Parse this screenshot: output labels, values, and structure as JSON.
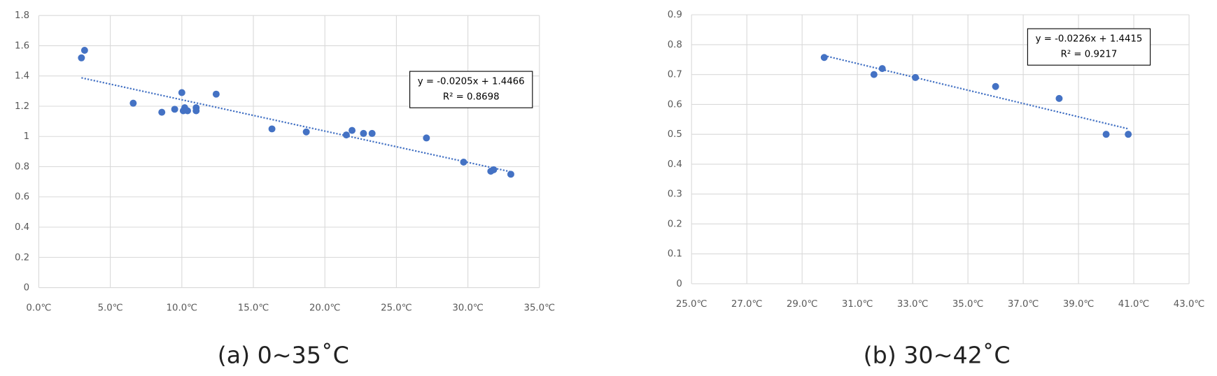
{
  "chart_data": [
    {
      "type": "scatter",
      "caption": "(a) 0~35˚C",
      "color": "#4472c4",
      "grid": true,
      "x": [
        2.98,
        3.2,
        6.6,
        8.6,
        9.5,
        10.0,
        10.2,
        10.1,
        10.4,
        11.0,
        11.0,
        12.4,
        16.3,
        18.7,
        21.5,
        21.9,
        22.7,
        23.3,
        27.1,
        29.7,
        31.6,
        31.8,
        33.0
      ],
      "values": [
        1.52,
        1.57,
        1.22,
        1.16,
        1.18,
        1.29,
        1.19,
        1.17,
        1.17,
        1.19,
        1.17,
        1.28,
        1.05,
        1.03,
        1.01,
        1.04,
        1.02,
        1.02,
        0.99,
        0.83,
        0.77,
        0.78,
        0.75
      ],
      "xlim": [
        0,
        35
      ],
      "xticks": [
        {
          "value": 0,
          "label": "0.0℃"
        },
        {
          "value": 5,
          "label": "5.0℃"
        },
        {
          "value": 10,
          "label": "10.0℃"
        },
        {
          "value": 15,
          "label": "15.0℃"
        },
        {
          "value": 20,
          "label": "20.0℃"
        },
        {
          "value": 25,
          "label": "25.0℃"
        },
        {
          "value": 30,
          "label": "30.0℃"
        },
        {
          "value": 35,
          "label": "35.0℃"
        }
      ],
      "ylim": [
        0,
        1.8
      ],
      "yticks": [
        0,
        0.2,
        0.4,
        0.6,
        0.8,
        1,
        1.2,
        1.4,
        1.6,
        1.8
      ],
      "trendline": {
        "equation": "y = -0.0205x + 1.4466",
        "r2": "R² = 0.8698"
      }
    },
    {
      "type": "scatter",
      "caption": "(b) 30~42˚C",
      "color": "#4472c4",
      "grid": true,
      "x": [
        29.8,
        31.6,
        31.9,
        33.1,
        36.0,
        38.3,
        40.0,
        40.8
      ],
      "values": [
        0.757,
        0.7,
        0.72,
        0.69,
        0.66,
        0.62,
        0.5,
        0.5
      ],
      "xlim": [
        25,
        43
      ],
      "xticks": [
        {
          "value": 25,
          "label": "25.0℃"
        },
        {
          "value": 27,
          "label": "27.0℃"
        },
        {
          "value": 29,
          "label": "29.0℃"
        },
        {
          "value": 31,
          "label": "31.0℃"
        },
        {
          "value": 33,
          "label": "33.0℃"
        },
        {
          "value": 35,
          "label": "35.0℃"
        },
        {
          "value": 37,
          "label": "37.0℃"
        },
        {
          "value": 39,
          "label": "39.0℃"
        },
        {
          "value": 41,
          "label": "41.0℃"
        },
        {
          "value": 43,
          "label": "43.0℃"
        }
      ],
      "ylim": [
        0,
        0.9
      ],
      "yticks": [
        0,
        0.1,
        0.2,
        0.3,
        0.4,
        0.5,
        0.6,
        0.7,
        0.8,
        0.9
      ],
      "trendline": {
        "equation": "y = -0.0226x + 1.4415",
        "r2": "R² = 0.9217"
      }
    }
  ]
}
